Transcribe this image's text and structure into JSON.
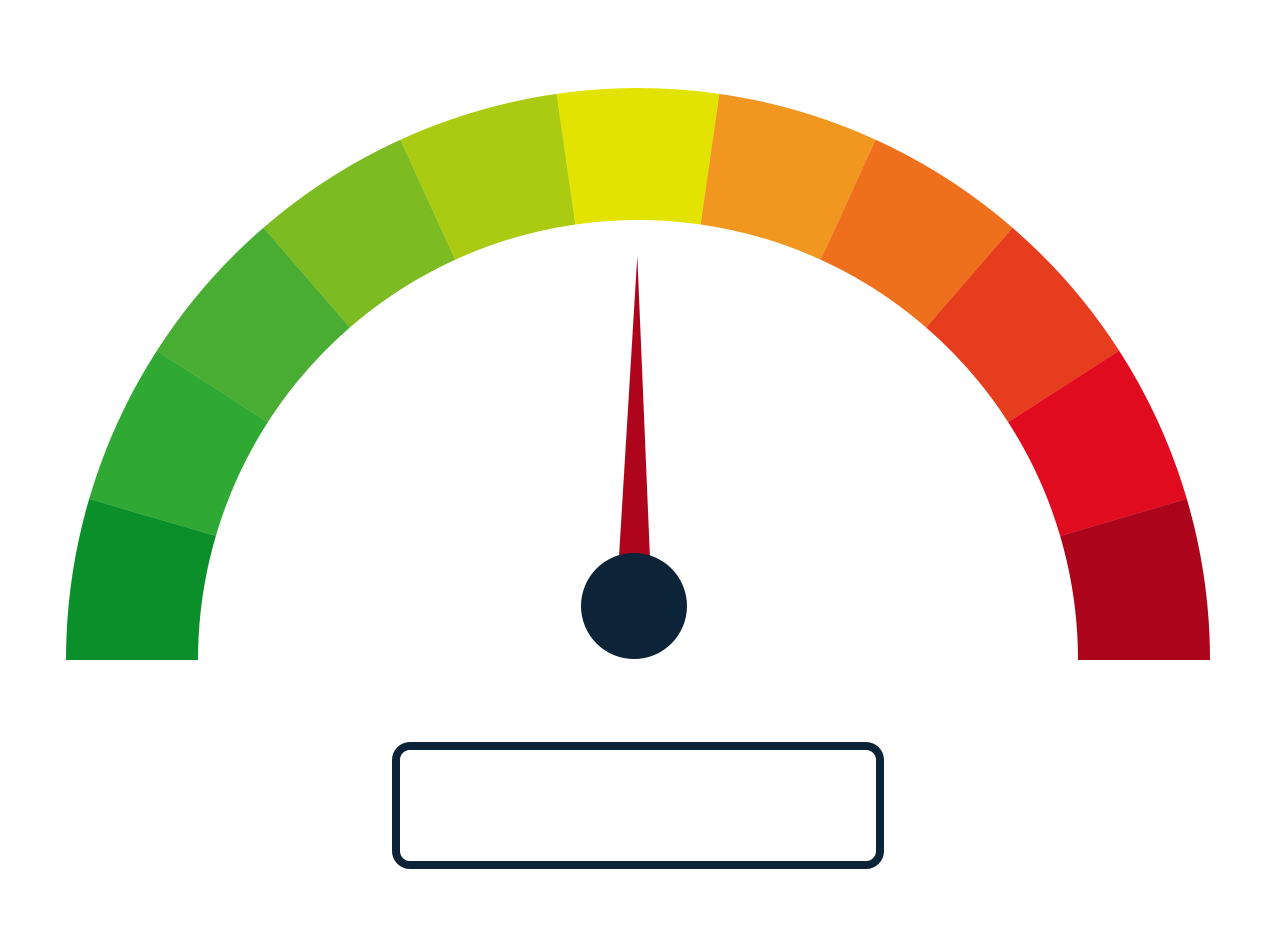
{
  "gauge": {
    "segments": [
      {
        "color": "#0a8f2a"
      },
      {
        "color": "#2fa834"
      },
      {
        "color": "#4aad33"
      },
      {
        "color": "#7dbb22"
      },
      {
        "color": "#aacb12"
      },
      {
        "color": "#e3e301"
      },
      {
        "color": "#f1961f"
      },
      {
        "color": "#ee701c"
      },
      {
        "color": "#e53d1e"
      },
      {
        "color": "#e10b20"
      },
      {
        "color": "#ac051b"
      }
    ],
    "needle_color": "#ae051c",
    "hub_color": "#0d2338",
    "value_fraction": 0.503,
    "readout_text": ""
  }
}
